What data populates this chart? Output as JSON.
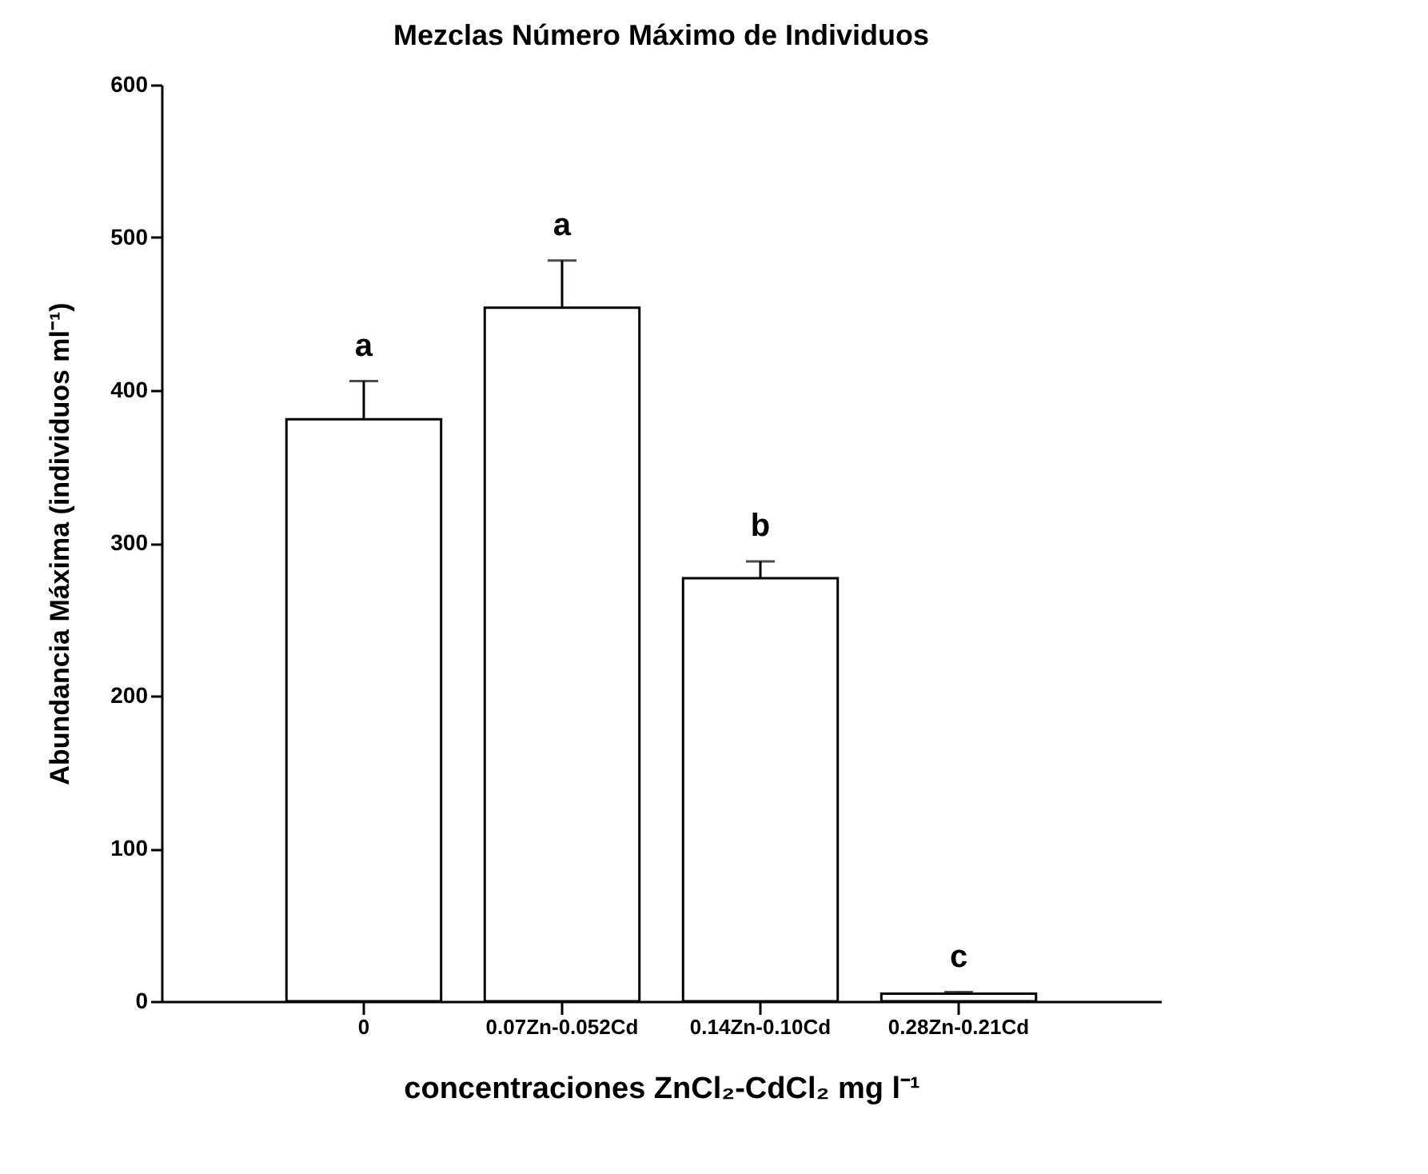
{
  "chart_data": {
    "type": "bar",
    "title": "Mezclas Número Máximo de Individuos",
    "xlabel": "concentraciones ZnCl₂-CdCl₂ mg l⁻¹",
    "ylabel": "Abundancia Máxima (individuos ml⁻¹)",
    "categories": [
      "0",
      "0.07Zn-0.052Cd",
      "0.14Zn-0.10Cd",
      "0.28Zn-0.21Cd"
    ],
    "values": [
      381,
      454,
      277,
      5
    ],
    "errors": [
      [
        381,
        406
      ],
      [
        454,
        485
      ],
      [
        277,
        288
      ],
      [
        5,
        6
      ]
    ],
    "color": "#ffffff",
    "ylim": [
      0,
      600
    ],
    "yticks": [
      0,
      100,
      200,
      300,
      400,
      500,
      600
    ],
    "grid": false,
    "annotations": [
      {
        "text": "a",
        "x": "0",
        "y": 406
      },
      {
        "text": "a",
        "x": "0.07Zn-0.052Cd",
        "y": 485
      },
      {
        "text": "b",
        "x": "0.14Zn-0.10Cd",
        "y": 288
      },
      {
        "text": "c",
        "x": "0.28Zn-0.21Cd",
        "y": 6
      }
    ]
  }
}
